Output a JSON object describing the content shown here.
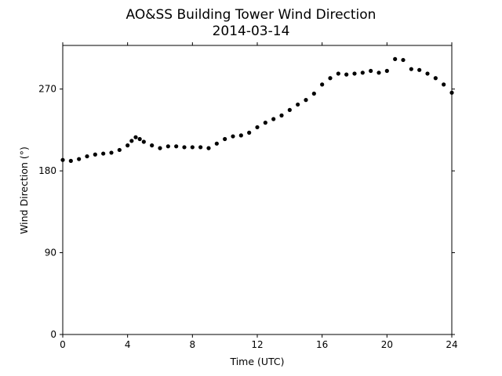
{
  "chart_data": {
    "type": "scatter",
    "title": "AO&SS Building Tower Wind Direction",
    "subtitle": "2014-03-14",
    "xlabel": "Time (UTC)",
    "ylabel": "Wind Direction (°)",
    "xlim": [
      0,
      24
    ],
    "ylim": [
      0,
      318
    ],
    "xticks": [
      0,
      4,
      8,
      12,
      16,
      20,
      24
    ],
    "yticks": [
      0,
      90,
      180,
      270
    ],
    "grid": false,
    "legend": "none",
    "marker_color": "#000000",
    "series": [
      {
        "x": [
          0,
          0.5,
          1,
          1.5,
          2,
          2.5,
          3,
          3.5,
          4,
          4.25,
          4.5,
          4.75,
          5,
          5.5,
          6,
          6.5,
          7,
          7.5,
          8,
          8.5,
          9,
          9.5,
          10,
          10.5,
          11,
          11.5,
          12,
          12.5,
          13,
          13.5,
          14,
          14.5,
          15,
          15.5,
          16,
          16.5,
          17,
          17.5,
          18,
          18.5,
          19,
          19.5,
          20,
          20.5,
          21,
          21.5,
          22,
          22.5,
          23,
          23.5,
          24
        ],
        "y": [
          192,
          191,
          193,
          196,
          198,
          199,
          200,
          203,
          208,
          213,
          217,
          215,
          212,
          208,
          205,
          207,
          207,
          206,
          206,
          206,
          205,
          210,
          215,
          218,
          219,
          222,
          228,
          233,
          237,
          241,
          247,
          253,
          258,
          265,
          275,
          282,
          287,
          286,
          287,
          288,
          290,
          288,
          290,
          303,
          302,
          292,
          291,
          287,
          282,
          275,
          266
        ]
      }
    ]
  }
}
